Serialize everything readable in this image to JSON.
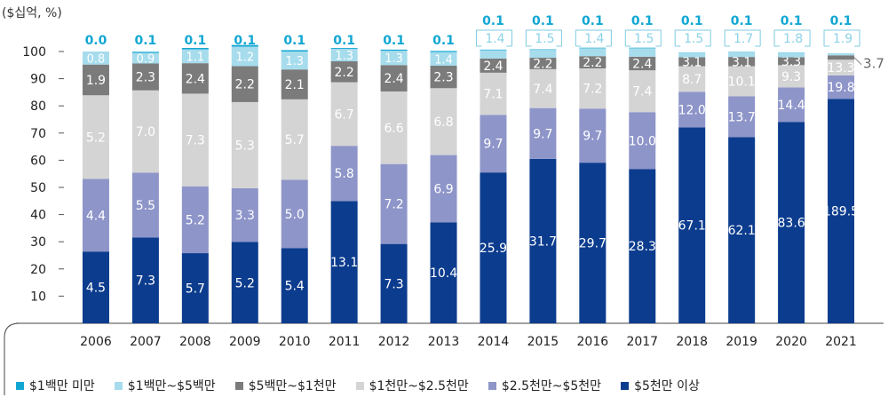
{
  "chart_data": {
    "type": "bar",
    "stacked": true,
    "unit_label": "($십억, %)",
    "categories": [
      "2006",
      "2007",
      "2008",
      "2009",
      "2010",
      "2011",
      "2012",
      "2013",
      "2014",
      "2015",
      "2016",
      "2017",
      "2018",
      "2019",
      "2020",
      "2021"
    ],
    "ylim": [
      0,
      100
    ],
    "yticks": [
      10,
      20,
      30,
      40,
      50,
      60,
      70,
      80,
      90,
      100
    ],
    "series": [
      {
        "name": "$5천만 이상",
        "color": "#0c3c8e",
        "values": [
          26.4,
          31.6,
          25.8,
          29.9,
          27.7,
          45.0,
          29.2,
          37.1,
          55.5,
          60.5,
          59.1,
          56.7,
          72.1,
          68.5,
          74.1,
          82.6
        ],
        "labels": [
          "4.5",
          "7.3",
          "5.7",
          "5.2",
          "5.4",
          "13.1",
          "7.3",
          "10.4",
          "25.9",
          "31.7",
          "29.7",
          "28.3",
          "67.1",
          "62.1",
          "83.6",
          "189.5"
        ]
      },
      {
        "name": "$2.5천만~$5천만",
        "color": "#8e95c9",
        "values": [
          26.7,
          23.8,
          24.6,
          19.8,
          25.1,
          20.3,
          29.4,
          24.8,
          21.2,
          18.7,
          19.9,
          21.0,
          13.1,
          15.0,
          12.7,
          8.6
        ],
        "labels": [
          "4.4",
          "5.5",
          "5.2",
          "3.3",
          "5.0",
          "5.8",
          "7.2",
          "6.9",
          "9.7",
          "9.7",
          "9.7",
          "10.0",
          "12.0",
          "13.7",
          "14.4",
          "19.8"
        ]
      },
      {
        "name": "$1천만~$2.5천만",
        "color": "#d4d4d4",
        "values": [
          30.8,
          30.3,
          34.1,
          31.7,
          29.6,
          23.4,
          26.7,
          24.6,
          15.5,
          14.3,
          14.8,
          15.4,
          9.4,
          11.1,
          8.2,
          5.8
        ],
        "labels": [
          "5.2",
          "7.0",
          "7.3",
          "5.3",
          "5.7",
          "6.7",
          "6.6",
          "6.8",
          "7.1",
          "7.4",
          "7.2",
          "7.4",
          "8.7",
          "10.1",
          "9.3",
          "13.3"
        ]
      },
      {
        "name": "$5백만~$1천만",
        "color": "#7b7b7b",
        "values": [
          11.3,
          9.9,
          11.2,
          13.2,
          11.0,
          7.7,
          9.7,
          8.3,
          5.2,
          4.2,
          4.5,
          5.0,
          3.3,
          3.4,
          2.9,
          1.6
        ],
        "labels": [
          "1.9",
          "2.3",
          "2.4",
          "2.2",
          "2.1",
          "2.2",
          "2.4",
          "2.3",
          "2.4",
          "2.2",
          "2.2",
          "2.4",
          "3.1",
          "3.1",
          "3.3",
          "3.7"
        ]
      },
      {
        "name": "$1백만~$5백만",
        "color": "#a6dcec",
        "values": [
          4.8,
          3.9,
          5.1,
          7.2,
          6.6,
          4.6,
          5.3,
          5.0,
          3.1,
          2.9,
          2.9,
          3.1,
          1.6,
          1.8,
          1.6,
          0.8
        ],
        "labels": [
          "0.8",
          "0.9",
          "1.1",
          "1.2",
          "1.3",
          "1.3",
          "1.3",
          "1.4",
          "1.4",
          "1.5",
          "1.4",
          "1.5",
          "1.5",
          "1.7",
          "1.8",
          "1.9"
        ]
      },
      {
        "name": "$1백만 미만",
        "color": "#12a7d3",
        "values": [
          0.0,
          0.4,
          0.5,
          0.6,
          0.5,
          0.3,
          0.4,
          0.4,
          0.2,
          0.2,
          0.2,
          0.2,
          0.1,
          0.1,
          0.1,
          0.0
        ],
        "labels": [
          "0.0",
          "0.1",
          "0.1",
          "0.1",
          "0.1",
          "0.1",
          "0.1",
          "0.1",
          "0.1",
          "0.1",
          "0.1",
          "0.1",
          "0.1",
          "0.1",
          "0.1",
          "0.1"
        ]
      }
    ],
    "legend": {
      "placement": "bottom",
      "order": [
        "$1백만 미만",
        "$1백만~$5백만",
        "$5백만~$1천만",
        "$1천만~$2.5천만",
        "$2.5천만~$5천만",
        "$5천만 이상"
      ]
    },
    "grid": false
  }
}
